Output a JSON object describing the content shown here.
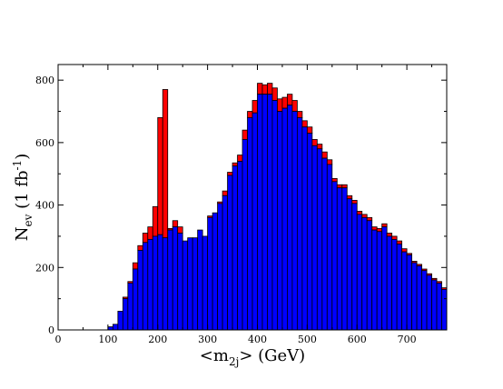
{
  "chart_data": {
    "type": "bar",
    "stacked": true,
    "xlabel": {
      "main": "<m",
      "sub": "2j",
      "tail": "> (GeV)"
    },
    "ylabel": {
      "main": "N",
      "sub": "ev",
      "mid": " (1 fb",
      "sup": "-1",
      "tail": ")"
    },
    "xlim": [
      0,
      780
    ],
    "ylim": [
      0,
      850
    ],
    "bin_width": 10,
    "x_ticks": [
      "0",
      "100",
      "200",
      "300",
      "400",
      "500",
      "600",
      "700"
    ],
    "y_ticks": [
      "0",
      "200",
      "400",
      "600",
      "800"
    ],
    "grid": false,
    "colors": {
      "blue": "#0000ff",
      "red": "#ff0000",
      "edge": "#000000"
    },
    "series": [
      {
        "color": "blue",
        "x": [
          100,
          110,
          120,
          130,
          140,
          150,
          160,
          170,
          180,
          190,
          200,
          210,
          220,
          230,
          240,
          250,
          260,
          270,
          280,
          290,
          300,
          310,
          320,
          330,
          340,
          350,
          360,
          370,
          380,
          390,
          400,
          410,
          420,
          430,
          440,
          450,
          460,
          470,
          480,
          490,
          500,
          510,
          520,
          530,
          540,
          550,
          560,
          570,
          580,
          590,
          600,
          610,
          620,
          630,
          640,
          650,
          660,
          670,
          680,
          690,
          700,
          710,
          720,
          730,
          740,
          750,
          760,
          770
        ],
        "values": [
          10,
          18,
          60,
          100,
          150,
          195,
          255,
          280,
          290,
          300,
          305,
          295,
          320,
          330,
          310,
          285,
          295,
          295,
          320,
          300,
          360,
          375,
          405,
          430,
          495,
          525,
          540,
          610,
          680,
          695,
          755,
          755,
          755,
          735,
          700,
          710,
          720,
          700,
          680,
          650,
          630,
          590,
          580,
          550,
          530,
          475,
          455,
          455,
          420,
          405,
          370,
          360,
          350,
          320,
          315,
          330,
          300,
          290,
          275,
          250,
          240,
          215,
          205,
          190,
          175,
          160,
          150,
          130
        ]
      },
      {
        "color": "red",
        "x": [
          100,
          110,
          120,
          130,
          140,
          150,
          160,
          170,
          180,
          190,
          200,
          210,
          220,
          230,
          240,
          250,
          260,
          270,
          280,
          290,
          300,
          310,
          320,
          330,
          340,
          350,
          360,
          370,
          380,
          390,
          400,
          410,
          420,
          430,
          440,
          450,
          460,
          470,
          480,
          490,
          500,
          510,
          520,
          530,
          540,
          550,
          560,
          570,
          580,
          590,
          600,
          610,
          620,
          630,
          640,
          650,
          660,
          670,
          680,
          690,
          700,
          710,
          720,
          730,
          740,
          750,
          760,
          770
        ],
        "values": [
          0,
          0,
          0,
          5,
          5,
          20,
          15,
          30,
          40,
          95,
          375,
          475,
          5,
          20,
          20,
          0,
          0,
          0,
          0,
          0,
          5,
          0,
          5,
          15,
          10,
          10,
          20,
          30,
          20,
          40,
          35,
          30,
          35,
          40,
          40,
          35,
          35,
          35,
          20,
          20,
          20,
          20,
          15,
          20,
          15,
          10,
          10,
          10,
          10,
          10,
          10,
          10,
          10,
          10,
          10,
          10,
          10,
          10,
          10,
          10,
          5,
          5,
          5,
          5,
          5,
          5,
          5,
          5
        ]
      }
    ]
  }
}
